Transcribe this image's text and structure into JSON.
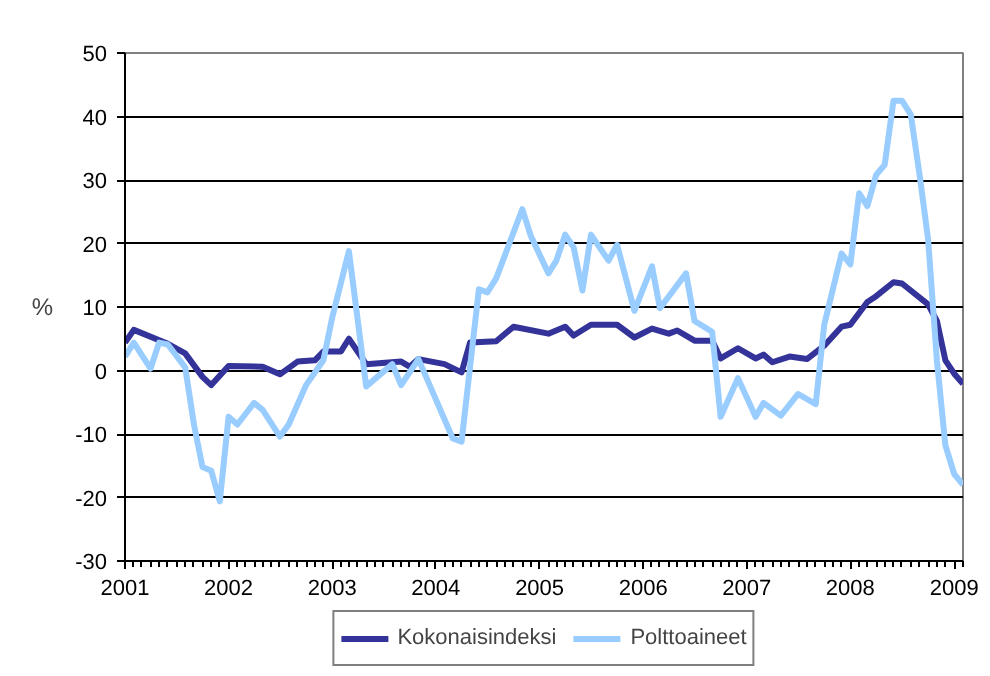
{
  "chart_data": {
    "type": "line",
    "ylabel": "%",
    "xlim": [
      "2001-01",
      "2009-02"
    ],
    "ylim": [
      -30,
      50
    ],
    "yticks": [
      -30,
      -20,
      -10,
      0,
      10,
      20,
      30,
      40,
      50
    ],
    "xticks": [
      "2001",
      "2002",
      "2003",
      "2004",
      "2005",
      "2006",
      "2007",
      "2008",
      "2009"
    ],
    "grid": "y",
    "legend": "bottom",
    "line_style": "solid",
    "marker": "none",
    "series": [
      {
        "name": "Kokonaisindeksi",
        "color": "#333399",
        "x": [
          "2001-01",
          "2001-02",
          "2001-06",
          "2001-08",
          "2001-10",
          "2001-11",
          "2002-01",
          "2002-05",
          "2002-07",
          "2002-09",
          "2002-11",
          "2002-12",
          "2003-02",
          "2003-03",
          "2003-05",
          "2003-09",
          "2003-10",
          "2003-11",
          "2004-02",
          "2004-04",
          "2004-05",
          "2004-08",
          "2004-10",
          "2005-02",
          "2005-04",
          "2005-05",
          "2005-07",
          "2005-10",
          "2005-12",
          "2006-02",
          "2006-04",
          "2006-05",
          "2006-07",
          "2006-09",
          "2006-10",
          "2006-12",
          "2007-02",
          "2007-03",
          "2007-04",
          "2007-06",
          "2007-08",
          "2007-10",
          "2007-12",
          "2008-01",
          "2008-03",
          "2008-04",
          "2008-06",
          "2008-07",
          "2008-10",
          "2008-11",
          "2008-12",
          "2009-01",
          "2009-02"
        ],
        "values": [
          4.4,
          6.4,
          4.2,
          2.7,
          -1.0,
          -2.3,
          0.7,
          0.6,
          -0.6,
          1.4,
          1.6,
          3.0,
          3.0,
          5.0,
          1.0,
          1.4,
          0.6,
          1.8,
          1.0,
          -0.3,
          4.4,
          4.6,
          6.9,
          5.8,
          6.9,
          5.5,
          7.2,
          7.2,
          5.2,
          6.6,
          5.8,
          6.3,
          4.7,
          4.7,
          1.9,
          3.5,
          1.9,
          2.5,
          1.3,
          2.2,
          1.8,
          3.9,
          6.9,
          7.2,
          10.8,
          11.7,
          13.9,
          13.7,
          10.4,
          7.8,
          1.6,
          -0.5,
          -2.1
        ]
      },
      {
        "name": "Polttoaineet",
        "color": "#99ccff",
        "x": [
          "2001-01",
          "2001-02",
          "2001-04",
          "2001-05",
          "2001-06",
          "2001-08",
          "2001-09",
          "2001-10",
          "2001-11",
          "2001-12",
          "2002-01",
          "2002-02",
          "2002-04",
          "2002-05",
          "2002-07",
          "2002-08",
          "2002-10",
          "2002-12",
          "2003-01",
          "2003-03",
          "2003-05",
          "2003-08",
          "2003-09",
          "2003-11",
          "2004-01",
          "2004-03",
          "2004-04",
          "2004-06",
          "2004-07",
          "2004-08",
          "2004-11",
          "2004-12",
          "2005-02",
          "2005-03",
          "2005-04",
          "2005-05",
          "2005-06",
          "2005-07",
          "2005-09",
          "2005-10",
          "2005-12",
          "2006-02",
          "2006-03",
          "2006-06",
          "2006-07",
          "2006-09",
          "2006-10",
          "2006-12",
          "2007-02",
          "2007-03",
          "2007-05",
          "2007-07",
          "2007-09",
          "2007-10",
          "2007-12",
          "2008-01",
          "2008-02",
          "2008-03",
          "2008-04",
          "2008-05",
          "2008-06",
          "2008-07",
          "2008-08",
          "2008-09",
          "2008-10",
          "2008-11",
          "2008-12",
          "2009-01",
          "2009-02"
        ],
        "values": [
          2.2,
          4.4,
          0.3,
          4.4,
          4.1,
          0.5,
          -8.5,
          -15.2,
          -15.8,
          -20.6,
          -7.3,
          -8.5,
          -5.1,
          -6.2,
          -10.4,
          -8.5,
          -2.3,
          1.6,
          8.3,
          18.8,
          -2.5,
          1.0,
          -2.3,
          1.8,
          -4.5,
          -10.7,
          -11.2,
          12.8,
          12.3,
          14.5,
          25.4,
          21.2,
          15.3,
          17.3,
          21.4,
          19.4,
          12.6,
          21.4,
          17.3,
          19.8,
          9.4,
          16.4,
          9.8,
          15.3,
          7.8,
          6.1,
          -7.3,
          -1.2,
          -7.3,
          -5.1,
          -7.1,
          -3.7,
          -5.3,
          7.2,
          18.4,
          16.7,
          27.9,
          25.9,
          30.8,
          32.4,
          42.5,
          42.5,
          40.3,
          30.8,
          20.7,
          1.6,
          -11.8,
          -16.3,
          -18.0
        ]
      }
    ]
  }
}
